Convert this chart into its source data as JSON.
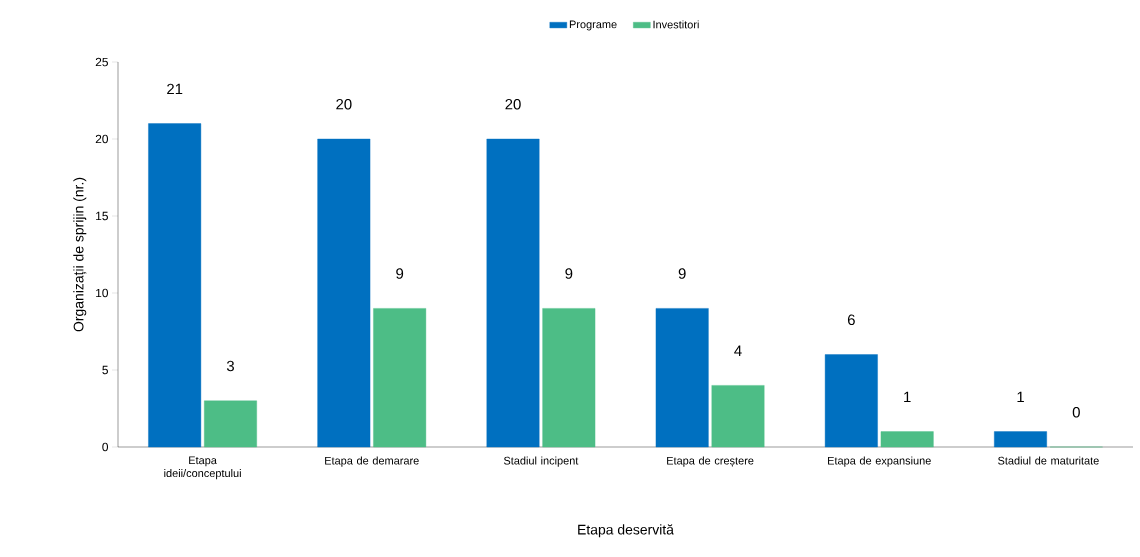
{
  "chart_data": {
    "type": "bar",
    "xlabel": "Etapa deservită",
    "ylabel": "Organizații de sprijin (nr.)",
    "categories": [
      "Etapa ideii/conceptului",
      "Etapa de demarare",
      "Stadiul incipent",
      "Etapa de creștere",
      "Etapa de expansiune",
      "Stadiul de maturitate"
    ],
    "series": [
      {
        "name": "Programe",
        "color": "#0070c0",
        "values": [
          21,
          20,
          20,
          9,
          6,
          1
        ]
      },
      {
        "name": "Investitori",
        "color": "#4dbd86",
        "values": [
          3,
          9,
          9,
          4,
          1,
          0
        ]
      }
    ],
    "ylim": [
      0,
      25
    ],
    "yticks": [
      0,
      5,
      10,
      15,
      20,
      25
    ],
    "data_labels": true,
    "legend": "top",
    "grid": false
  }
}
